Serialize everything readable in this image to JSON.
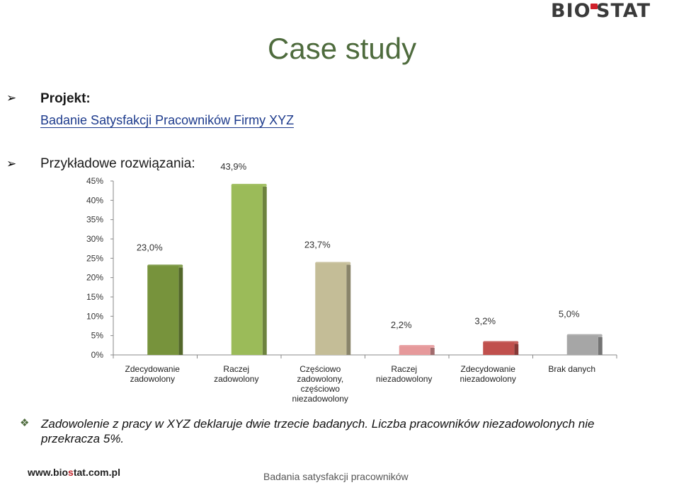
{
  "logo": {
    "text_left": "BIO",
    "text_right": "STAT"
  },
  "slide": {
    "title": "Case study",
    "project_label": "Projekt:",
    "project_name": "Badanie Satysfakcji Pracowników Firmy XYZ",
    "examples_label": "Przykładowe rozwiązania:",
    "conclusion": "Zadowolenie z pracy w XYZ deklaruje dwie trzecie badanych. Liczba pracowników niezadowolonych nie przekracza 5%.",
    "footer_url_pre": "www.bio",
    "footer_url_o": "s",
    "footer_url_post": "tat.com.pl",
    "footer_center": "Badania satysfakcji pracowników",
    "arrow_bullet": "➢",
    "diamond_bullet": "❖"
  },
  "chart_data": {
    "type": "bar",
    "categories": [
      [
        "Zdecydowanie",
        "zadowolony"
      ],
      [
        "Raczej",
        "zadowolony"
      ],
      [
        "Częściowo",
        "zadowolony,",
        "częściowo",
        "niezadowolony"
      ],
      [
        "Raczej",
        "niezadowolony"
      ],
      [
        "Zdecydowanie",
        "niezadowolony"
      ],
      [
        "Brak danych"
      ]
    ],
    "values": [
      23.0,
      43.9,
      23.7,
      2.2,
      3.2,
      5.0
    ],
    "data_labels": [
      "23,0%",
      "43,9%",
      "23,7%",
      "2,2%",
      "3,2%",
      "5,0%"
    ],
    "colors": [
      "#77933c",
      "#9bbb59",
      "#c4bd97",
      "#e6999b",
      "#c0504d",
      "#a6a6a6"
    ],
    "yticks": [
      "0%",
      "5%",
      "10%",
      "15%",
      "20%",
      "25%",
      "30%",
      "35%",
      "40%",
      "45%"
    ],
    "ylim": [
      0,
      45
    ],
    "grid": false
  }
}
